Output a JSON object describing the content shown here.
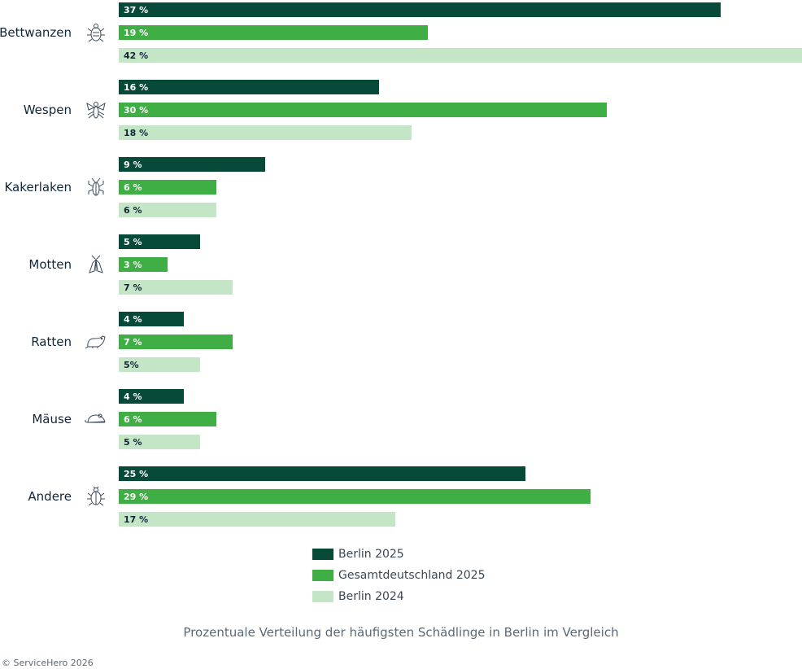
{
  "chart_data": {
    "type": "bar",
    "orientation": "horizontal",
    "categories": [
      "Bettwanzen",
      "Wespen",
      "Kakerlaken",
      "Motten",
      "Ratten",
      "Mäuse",
      "Andere"
    ],
    "series": [
      {
        "name": "Berlin 2025",
        "color": "#074a39",
        "values": [
          37,
          16,
          9,
          5,
          4,
          4,
          25
        ],
        "labels": [
          "37 %",
          "16 %",
          "9 %",
          "5 %",
          "4 %",
          "4 %",
          "25 %"
        ]
      },
      {
        "name": "Gesamtdeutschland 2025",
        "color": "#3fae44",
        "values": [
          19,
          30,
          6,
          3,
          7,
          6,
          29
        ],
        "labels": [
          "19 %",
          "30 %",
          "6 %",
          "3 %",
          "7 %",
          "6 %",
          "29 %"
        ]
      },
      {
        "name": "Berlin 2024",
        "color": "#c4e6c6",
        "values": [
          42,
          18,
          6,
          7,
          5,
          5,
          17
        ],
        "labels": [
          "42 %",
          "18 %",
          "6 %",
          "7 %",
          "5%",
          "5 %",
          "17 %"
        ]
      }
    ],
    "icons": [
      "bedbug-icon",
      "wasp-icon",
      "cockroach-icon",
      "moth-icon",
      "rat-icon",
      "mouse-icon",
      "beetle-icon"
    ],
    "legend": {
      "position": "bottom"
    },
    "grid": false
  },
  "caption": "Prozentuale Verteilung der häufigsten Schädlinge in Berlin im Vergleich",
  "copyright": "© ServiceHero 2026"
}
